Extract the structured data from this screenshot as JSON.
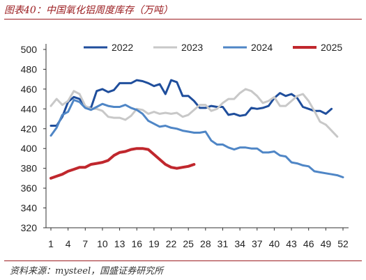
{
  "header": {
    "title": "图表40：中国氧化铝周度库存（万吨）"
  },
  "footer": {
    "source": "资料来源：mysteel，国盛证券研究所"
  },
  "chart_data": {
    "type": "line",
    "title": "中国氧化铝周度库存（万吨）",
    "xlabel": "",
    "ylabel": "",
    "xlim": [
      1,
      52
    ],
    "ylim": [
      320,
      500
    ],
    "x_ticks": [
      1,
      4,
      7,
      10,
      13,
      16,
      19,
      22,
      25,
      28,
      31,
      34,
      37,
      40,
      43,
      46,
      49,
      52
    ],
    "y_ticks": [
      320,
      340,
      360,
      380,
      400,
      420,
      440,
      460,
      480,
      500
    ],
    "grid": false,
    "legend_position": "top",
    "series": [
      {
        "name": "2022",
        "color": "#1f4e9c",
        "values": [
          423,
          423,
          432,
          447,
          452,
          450,
          442,
          441,
          458,
          460,
          457,
          459,
          466,
          466,
          466,
          469,
          468,
          466,
          463,
          465,
          455,
          469,
          467,
          453,
          453,
          448,
          441,
          441,
          443,
          442,
          442,
          434,
          435,
          433,
          434,
          441,
          440,
          441,
          443,
          451,
          456,
          453,
          455,
          451,
          442,
          440,
          438,
          438,
          435,
          440
        ]
      },
      {
        "name": "2023",
        "color": "#c8c8c8",
        "values": [
          443,
          450,
          444,
          448,
          458,
          455,
          443,
          440,
          440,
          438,
          432,
          431,
          431,
          429,
          433,
          440,
          439,
          435,
          437,
          435,
          436,
          435,
          436,
          432,
          434,
          439,
          444,
          444,
          438,
          440,
          446,
          450,
          450,
          456,
          460,
          458,
          453,
          446,
          448,
          452,
          443,
          443,
          448,
          453,
          455,
          448,
          438,
          427,
          424,
          418,
          412
        ]
      },
      {
        "name": "2024",
        "color": "#4f86c6",
        "values": [
          413,
          421,
          434,
          437,
          449,
          447,
          441,
          439,
          442,
          445,
          443,
          442,
          442,
          444,
          441,
          439,
          435,
          428,
          425,
          422,
          423,
          421,
          420,
          418,
          417,
          416,
          416,
          417,
          408,
          404,
          404,
          401,
          399,
          401,
          401,
          400,
          400,
          396,
          396,
          397,
          393,
          392,
          386,
          385,
          383,
          382,
          377,
          376,
          375,
          374,
          373,
          371
        ]
      },
      {
        "name": "2025",
        "color": "#c0272d",
        "values": [
          370,
          372,
          374,
          377,
          379,
          381,
          381,
          384,
          385,
          386,
          388,
          393,
          396,
          397,
          399,
          400,
          400,
          399,
          394,
          389,
          384,
          381,
          380,
          381,
          382,
          384
        ]
      }
    ]
  }
}
